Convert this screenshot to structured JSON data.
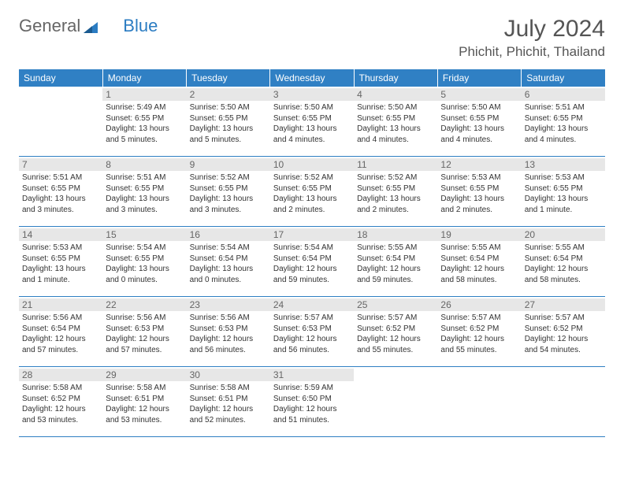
{
  "logo": {
    "part1": "General",
    "part2": "Blue"
  },
  "title": "July 2024",
  "subtitle": "Phichit, Phichit, Thailand",
  "dayheaders": [
    "Sunday",
    "Monday",
    "Tuesday",
    "Wednesday",
    "Thursday",
    "Friday",
    "Saturday"
  ],
  "colors": {
    "header_bg": "#3080c4",
    "header_text": "#ffffff",
    "daynum_bg": "#e7e7e7",
    "text": "#333333",
    "rule": "#2f7fc3"
  },
  "weeks": [
    [
      {
        "day": "",
        "lines": [
          "",
          "",
          "",
          ""
        ]
      },
      {
        "day": "1",
        "lines": [
          "Sunrise: 5:49 AM",
          "Sunset: 6:55 PM",
          "Daylight: 13 hours",
          "and 5 minutes."
        ]
      },
      {
        "day": "2",
        "lines": [
          "Sunrise: 5:50 AM",
          "Sunset: 6:55 PM",
          "Daylight: 13 hours",
          "and 5 minutes."
        ]
      },
      {
        "day": "3",
        "lines": [
          "Sunrise: 5:50 AM",
          "Sunset: 6:55 PM",
          "Daylight: 13 hours",
          "and 4 minutes."
        ]
      },
      {
        "day": "4",
        "lines": [
          "Sunrise: 5:50 AM",
          "Sunset: 6:55 PM",
          "Daylight: 13 hours",
          "and 4 minutes."
        ]
      },
      {
        "day": "5",
        "lines": [
          "Sunrise: 5:50 AM",
          "Sunset: 6:55 PM",
          "Daylight: 13 hours",
          "and 4 minutes."
        ]
      },
      {
        "day": "6",
        "lines": [
          "Sunrise: 5:51 AM",
          "Sunset: 6:55 PM",
          "Daylight: 13 hours",
          "and 4 minutes."
        ]
      }
    ],
    [
      {
        "day": "7",
        "lines": [
          "Sunrise: 5:51 AM",
          "Sunset: 6:55 PM",
          "Daylight: 13 hours",
          "and 3 minutes."
        ]
      },
      {
        "day": "8",
        "lines": [
          "Sunrise: 5:51 AM",
          "Sunset: 6:55 PM",
          "Daylight: 13 hours",
          "and 3 minutes."
        ]
      },
      {
        "day": "9",
        "lines": [
          "Sunrise: 5:52 AM",
          "Sunset: 6:55 PM",
          "Daylight: 13 hours",
          "and 3 minutes."
        ]
      },
      {
        "day": "10",
        "lines": [
          "Sunrise: 5:52 AM",
          "Sunset: 6:55 PM",
          "Daylight: 13 hours",
          "and 2 minutes."
        ]
      },
      {
        "day": "11",
        "lines": [
          "Sunrise: 5:52 AM",
          "Sunset: 6:55 PM",
          "Daylight: 13 hours",
          "and 2 minutes."
        ]
      },
      {
        "day": "12",
        "lines": [
          "Sunrise: 5:53 AM",
          "Sunset: 6:55 PM",
          "Daylight: 13 hours",
          "and 2 minutes."
        ]
      },
      {
        "day": "13",
        "lines": [
          "Sunrise: 5:53 AM",
          "Sunset: 6:55 PM",
          "Daylight: 13 hours",
          "and 1 minute."
        ]
      }
    ],
    [
      {
        "day": "14",
        "lines": [
          "Sunrise: 5:53 AM",
          "Sunset: 6:55 PM",
          "Daylight: 13 hours",
          "and 1 minute."
        ]
      },
      {
        "day": "15",
        "lines": [
          "Sunrise: 5:54 AM",
          "Sunset: 6:55 PM",
          "Daylight: 13 hours",
          "and 0 minutes."
        ]
      },
      {
        "day": "16",
        "lines": [
          "Sunrise: 5:54 AM",
          "Sunset: 6:54 PM",
          "Daylight: 13 hours",
          "and 0 minutes."
        ]
      },
      {
        "day": "17",
        "lines": [
          "Sunrise: 5:54 AM",
          "Sunset: 6:54 PM",
          "Daylight: 12 hours",
          "and 59 minutes."
        ]
      },
      {
        "day": "18",
        "lines": [
          "Sunrise: 5:55 AM",
          "Sunset: 6:54 PM",
          "Daylight: 12 hours",
          "and 59 minutes."
        ]
      },
      {
        "day": "19",
        "lines": [
          "Sunrise: 5:55 AM",
          "Sunset: 6:54 PM",
          "Daylight: 12 hours",
          "and 58 minutes."
        ]
      },
      {
        "day": "20",
        "lines": [
          "Sunrise: 5:55 AM",
          "Sunset: 6:54 PM",
          "Daylight: 12 hours",
          "and 58 minutes."
        ]
      }
    ],
    [
      {
        "day": "21",
        "lines": [
          "Sunrise: 5:56 AM",
          "Sunset: 6:54 PM",
          "Daylight: 12 hours",
          "and 57 minutes."
        ]
      },
      {
        "day": "22",
        "lines": [
          "Sunrise: 5:56 AM",
          "Sunset: 6:53 PM",
          "Daylight: 12 hours",
          "and 57 minutes."
        ]
      },
      {
        "day": "23",
        "lines": [
          "Sunrise: 5:56 AM",
          "Sunset: 6:53 PM",
          "Daylight: 12 hours",
          "and 56 minutes."
        ]
      },
      {
        "day": "24",
        "lines": [
          "Sunrise: 5:57 AM",
          "Sunset: 6:53 PM",
          "Daylight: 12 hours",
          "and 56 minutes."
        ]
      },
      {
        "day": "25",
        "lines": [
          "Sunrise: 5:57 AM",
          "Sunset: 6:52 PM",
          "Daylight: 12 hours",
          "and 55 minutes."
        ]
      },
      {
        "day": "26",
        "lines": [
          "Sunrise: 5:57 AM",
          "Sunset: 6:52 PM",
          "Daylight: 12 hours",
          "and 55 minutes."
        ]
      },
      {
        "day": "27",
        "lines": [
          "Sunrise: 5:57 AM",
          "Sunset: 6:52 PM",
          "Daylight: 12 hours",
          "and 54 minutes."
        ]
      }
    ],
    [
      {
        "day": "28",
        "lines": [
          "Sunrise: 5:58 AM",
          "Sunset: 6:52 PM",
          "Daylight: 12 hours",
          "and 53 minutes."
        ]
      },
      {
        "day": "29",
        "lines": [
          "Sunrise: 5:58 AM",
          "Sunset: 6:51 PM",
          "Daylight: 12 hours",
          "and 53 minutes."
        ]
      },
      {
        "day": "30",
        "lines": [
          "Sunrise: 5:58 AM",
          "Sunset: 6:51 PM",
          "Daylight: 12 hours",
          "and 52 minutes."
        ]
      },
      {
        "day": "31",
        "lines": [
          "Sunrise: 5:59 AM",
          "Sunset: 6:50 PM",
          "Daylight: 12 hours",
          "and 51 minutes."
        ]
      },
      {
        "day": "",
        "lines": [
          "",
          "",
          "",
          ""
        ]
      },
      {
        "day": "",
        "lines": [
          "",
          "",
          "",
          ""
        ]
      },
      {
        "day": "",
        "lines": [
          "",
          "",
          "",
          ""
        ]
      }
    ]
  ]
}
